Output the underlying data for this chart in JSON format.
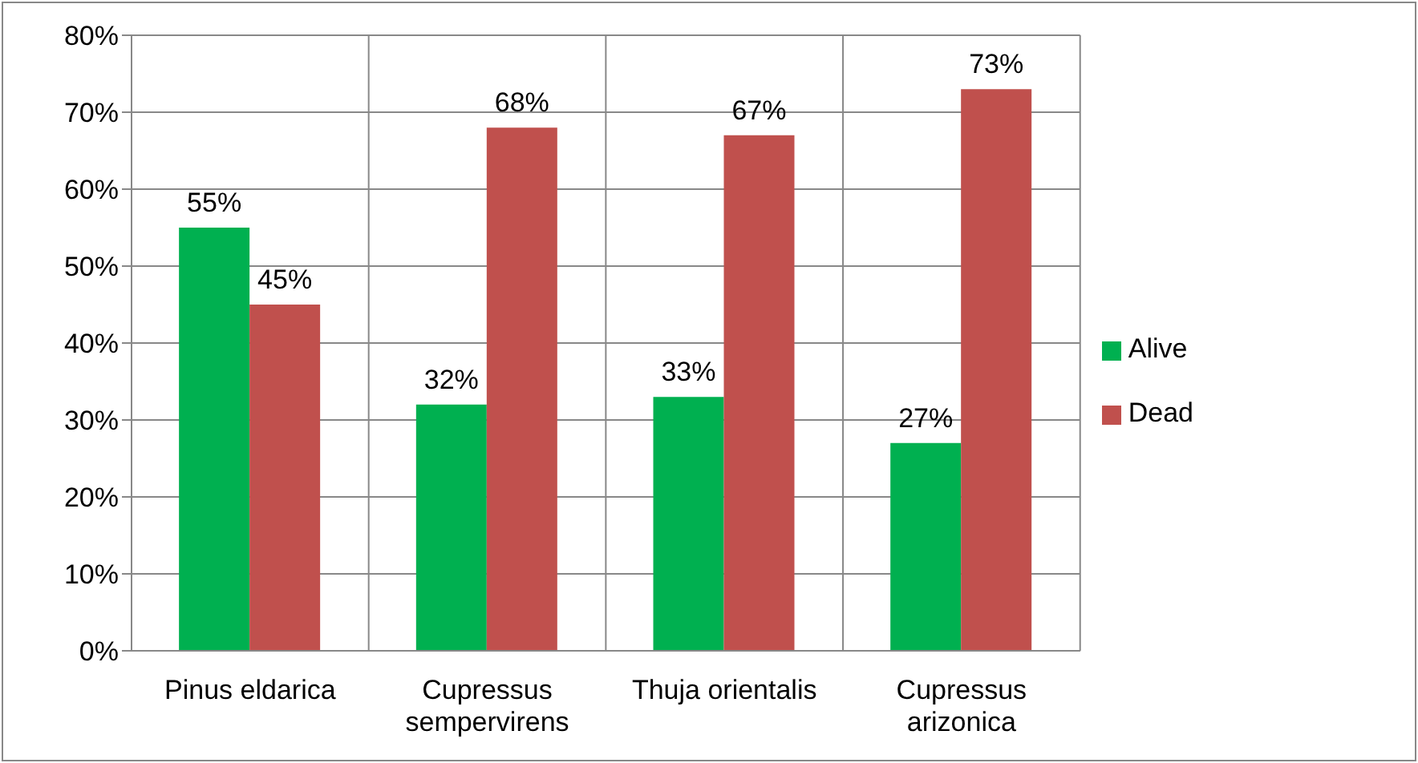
{
  "chart_data": {
    "type": "bar",
    "categories": [
      "Pinus eldarica",
      "Cupressus sempervirens",
      "Thuja orientalis",
      "Cupressus arizonica"
    ],
    "series": [
      {
        "name": "Alive",
        "color": "#00b050",
        "values": [
          55,
          32,
          33,
          27
        ],
        "value_labels": [
          "55%",
          "32%",
          "33%",
          "27%"
        ]
      },
      {
        "name": "Dead",
        "color": "#c0504d",
        "values": [
          45,
          68,
          67,
          73
        ],
        "value_labels": [
          "45%",
          "68%",
          "67%",
          "73%"
        ]
      }
    ],
    "ylim": [
      0,
      80
    ],
    "yticks": [
      {
        "value": 0,
        "label": "0%"
      },
      {
        "value": 10,
        "label": "10%"
      },
      {
        "value": 20,
        "label": "20%"
      },
      {
        "value": 30,
        "label": "30%"
      },
      {
        "value": 40,
        "label": "40%"
      },
      {
        "value": 50,
        "label": "50%"
      },
      {
        "value": 60,
        "label": "60%"
      },
      {
        "value": 70,
        "label": "70%"
      },
      {
        "value": 80,
        "label": "80%"
      }
    ],
    "grid": true,
    "legend": "right"
  }
}
